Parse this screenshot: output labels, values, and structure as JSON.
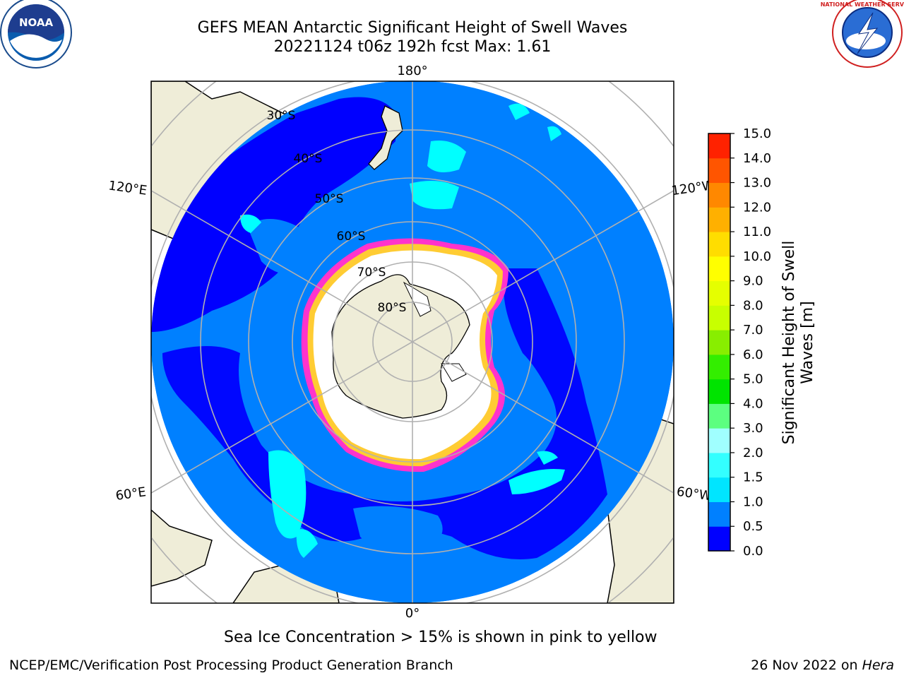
{
  "title": {
    "line1": "GEFS MEAN Antarctic Significant Height of Swell Waves",
    "line2": "20221124 t06z 192h fcst   Max: 1.61"
  },
  "logos": {
    "left": {
      "name": "NOAA",
      "ring_text": "NATIONAL OCEANIC AND ATMOSPHERIC ADMINISTRATION · U.S. DEPARTMENT OF COMMERCE"
    },
    "right": {
      "name": "NATIONAL WEATHER SERVICE"
    }
  },
  "map": {
    "meridian_labels": {
      "top": "180°",
      "bottom": "0°",
      "upper_left": "120°E",
      "upper_right": "120°W",
      "lower_left": "60°E",
      "lower_right": "60°W"
    },
    "latitude_labels": [
      "30°S",
      "40°S",
      "50°S",
      "60°S",
      "70°S",
      "80°S"
    ],
    "colors": {
      "ocean_main": "#0080ff",
      "ocean_low": "#0000ff",
      "swell_mid": "#00ffff",
      "land": "#efedd8",
      "ice_fill": "#ffffff",
      "ice_edge_pink": "#ff33cc",
      "ice_edge_yellow": "#ffcc33",
      "grid": "#b0b0b0"
    }
  },
  "colorbar": {
    "label": "Significant Height of Swell Waves [m]",
    "ticks": [
      "0.0",
      "0.5",
      "1.0",
      "1.5",
      "2.0",
      "3.0",
      "4.0",
      "5.0",
      "6.0",
      "7.0",
      "8.0",
      "9.0",
      "10.0",
      "11.0",
      "12.0",
      "13.0",
      "14.0",
      "15.0"
    ],
    "colors": [
      "#0000ff",
      "#0080ff",
      "#00e5ff",
      "#33ffff",
      "#a0ffff",
      "#5cff80",
      "#00e400",
      "#33ee00",
      "#88ee00",
      "#c8ff00",
      "#e5ff00",
      "#ffff00",
      "#ffdd00",
      "#ffb000",
      "#ff8800",
      "#ff5500",
      "#ff2200",
      "#ff0000"
    ]
  },
  "subnote": "Sea Ice Concentration > 15% is shown in pink to yellow",
  "footer": {
    "left": "NCEP/EMC/Verification Post Processing Product Generation Branch",
    "right_prefix": "26 Nov 2022 on ",
    "right_italic": "Hera"
  }
}
